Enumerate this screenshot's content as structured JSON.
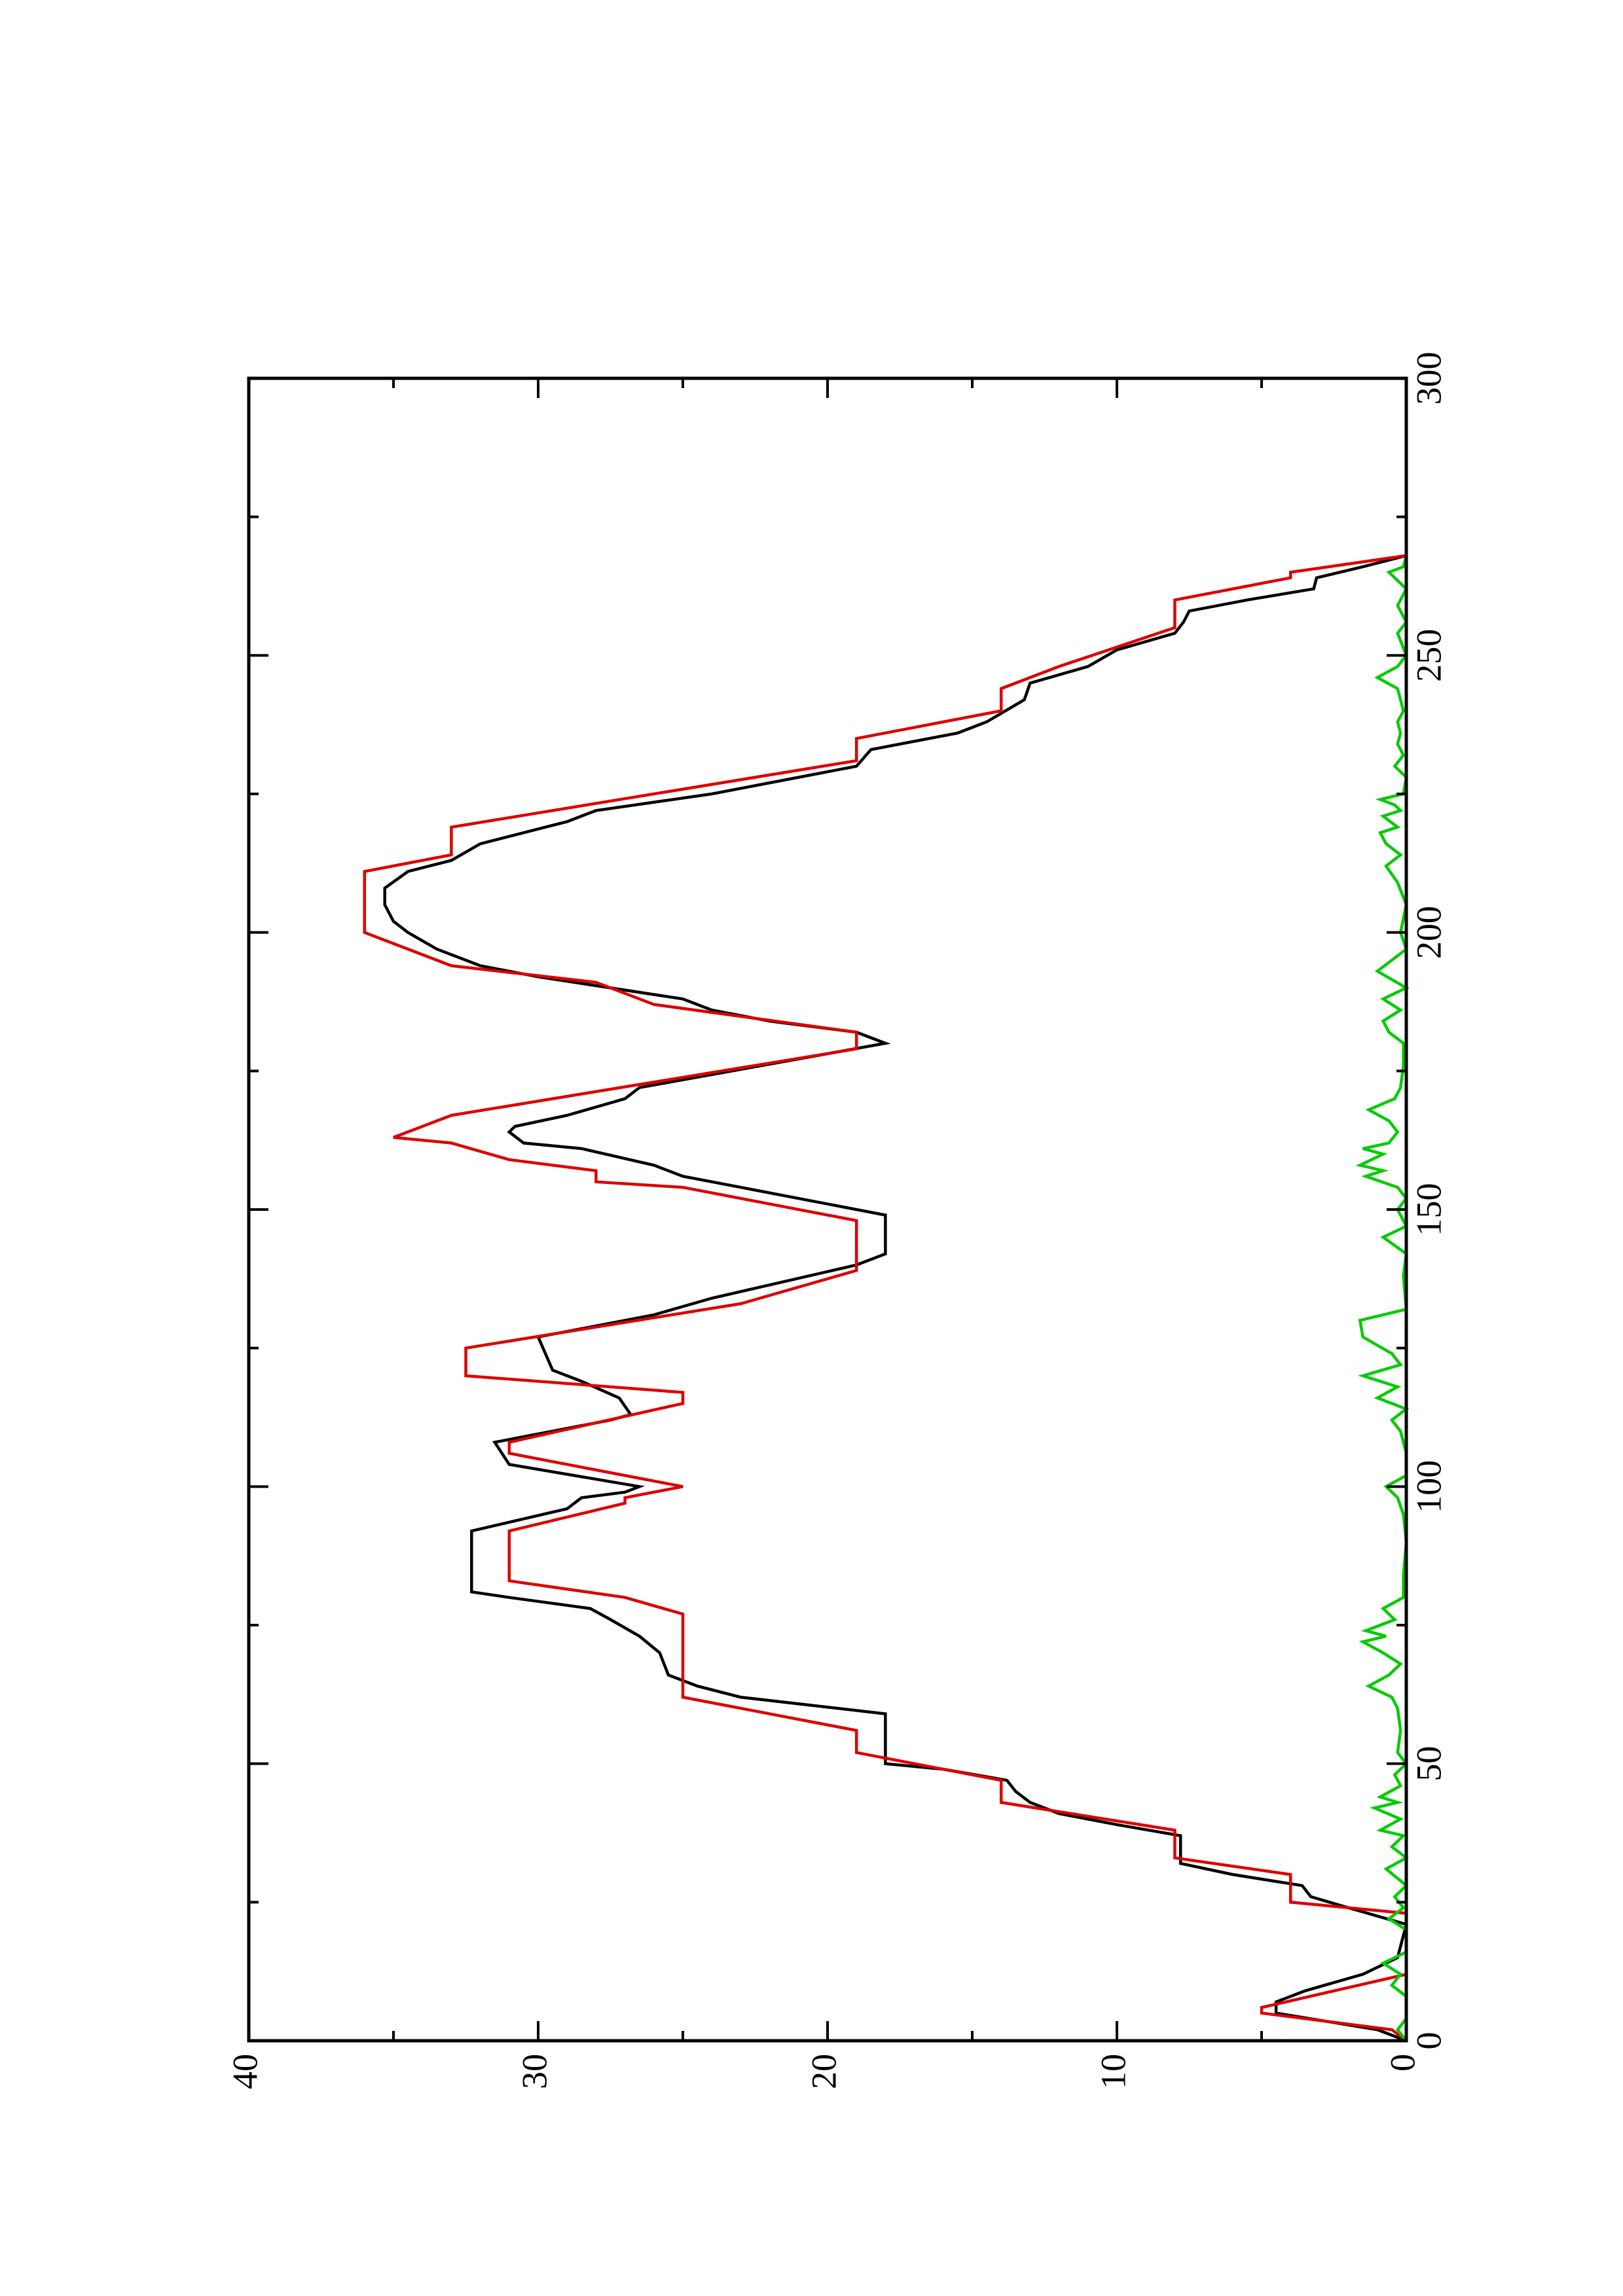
{
  "chart_data": {
    "type": "line",
    "title": "",
    "xlabel": "",
    "ylabel": "",
    "xlim": [
      0,
      300
    ],
    "ylim": [
      0,
      40
    ],
    "x_ticks": [
      0,
      50,
      100,
      150,
      200,
      250,
      300
    ],
    "y_ticks": [
      0,
      10,
      20,
      30,
      40
    ],
    "x_minor_step": 25,
    "y_minor_step": 5,
    "grid": false,
    "legend": "none",
    "orientation": "rotated-90-ccw",
    "colors": {
      "axes": "#000000",
      "series_black": "#000000",
      "series_red": "#dd0000",
      "series_green": "#00cc00"
    },
    "series": [
      {
        "color": "#000000",
        "points": [
          [
            0,
            0
          ],
          [
            2,
            1
          ],
          [
            5,
            4.5
          ],
          [
            7,
            4.5
          ],
          [
            9,
            3.5
          ],
          [
            12,
            1.5
          ],
          [
            15,
            0.3
          ],
          [
            21,
            0
          ],
          [
            24,
            2
          ],
          [
            26,
            3.3
          ],
          [
            28,
            3.6
          ],
          [
            30,
            6
          ],
          [
            32,
            7.8
          ],
          [
            37,
            7.8
          ],
          [
            39,
            10
          ],
          [
            41,
            12
          ],
          [
            43,
            13
          ],
          [
            45,
            13.5
          ],
          [
            47,
            13.8
          ],
          [
            49,
            16
          ],
          [
            50,
            18
          ],
          [
            59,
            18
          ],
          [
            62,
            23
          ],
          [
            64,
            24.5
          ],
          [
            66,
            25.5
          ],
          [
            70,
            25.8
          ],
          [
            73,
            26.5
          ],
          [
            76,
            27.5
          ],
          [
            78,
            28.2
          ],
          [
            80,
            31
          ],
          [
            81,
            32.3
          ],
          [
            92,
            32.3
          ],
          [
            96,
            29
          ],
          [
            98,
            28.5
          ],
          [
            99,
            27
          ],
          [
            100,
            26.5
          ],
          [
            104,
            31
          ],
          [
            108,
            31.5
          ],
          [
            109,
            30.5
          ],
          [
            112,
            27.5
          ],
          [
            113,
            26.8
          ],
          [
            116,
            27.2
          ],
          [
            119,
            28.5
          ],
          [
            121,
            29.5
          ],
          [
            127,
            30
          ],
          [
            131,
            26
          ],
          [
            134,
            24
          ],
          [
            140,
            19
          ],
          [
            142,
            18
          ],
          [
            149,
            18
          ],
          [
            154,
            23
          ],
          [
            156,
            25
          ],
          [
            158,
            26
          ],
          [
            161,
            28.5
          ],
          [
            162,
            30.5
          ],
          [
            164,
            31
          ],
          [
            165,
            30.8
          ],
          [
            167,
            29
          ],
          [
            170,
            27
          ],
          [
            172,
            26.5
          ],
          [
            180,
            18
          ],
          [
            182,
            19
          ],
          [
            184,
            22
          ],
          [
            186,
            24
          ],
          [
            188,
            25
          ],
          [
            192,
            30
          ],
          [
            194,
            32
          ],
          [
            197,
            33.5
          ],
          [
            200,
            34.5
          ],
          [
            202,
            35
          ],
          [
            205,
            35.3
          ],
          [
            208,
            35.3
          ],
          [
            211,
            34.5
          ],
          [
            213,
            33
          ],
          [
            216,
            32
          ],
          [
            220,
            29
          ],
          [
            222,
            28
          ],
          [
            225,
            24
          ],
          [
            230,
            19
          ],
          [
            233,
            18.5
          ],
          [
            236,
            15.5
          ],
          [
            238,
            14.5
          ],
          [
            242,
            13.2
          ],
          [
            245,
            13
          ],
          [
            248,
            11
          ],
          [
            251,
            10
          ],
          [
            254,
            8
          ],
          [
            256,
            7.7
          ],
          [
            258,
            7.5
          ],
          [
            260,
            5.5
          ],
          [
            262,
            3.2
          ],
          [
            264,
            3.1
          ],
          [
            266,
            1.5
          ],
          [
            268,
            0
          ]
        ]
      },
      {
        "color": "#dd0000",
        "points": [
          [
            0,
            0
          ],
          [
            2,
            0.5
          ],
          [
            5,
            5
          ],
          [
            6,
            5
          ],
          [
            12,
            0
          ],
          [
            15,
            0
          ],
          [
            23,
            0
          ],
          [
            25,
            4
          ],
          [
            30,
            4
          ],
          [
            33,
            8
          ],
          [
            38,
            8
          ],
          [
            43,
            14
          ],
          [
            47,
            14
          ],
          [
            52,
            19
          ],
          [
            56,
            19
          ],
          [
            62,
            25
          ],
          [
            74,
            25
          ],
          [
            77,
            25
          ],
          [
            80,
            27
          ],
          [
            83,
            31
          ],
          [
            92,
            31
          ],
          [
            97,
            27
          ],
          [
            98,
            27
          ],
          [
            100,
            25
          ],
          [
            106,
            31
          ],
          [
            108,
            31
          ],
          [
            115,
            25
          ],
          [
            117,
            25
          ],
          [
            120,
            32.5
          ],
          [
            125,
            32.5
          ],
          [
            133,
            23
          ],
          [
            139,
            19
          ],
          [
            148,
            19
          ],
          [
            154,
            25
          ],
          [
            155,
            28
          ],
          [
            157,
            28
          ],
          [
            159,
            31
          ],
          [
            162,
            33
          ],
          [
            163,
            35
          ],
          [
            167,
            33
          ],
          [
            179,
            19
          ],
          [
            180,
            19
          ],
          [
            182,
            19
          ],
          [
            187,
            26
          ],
          [
            191,
            28
          ],
          [
            194,
            33
          ],
          [
            200,
            36
          ],
          [
            211,
            36
          ],
          [
            214,
            33
          ],
          [
            219,
            33
          ],
          [
            231,
            19
          ],
          [
            235,
            19
          ],
          [
            240,
            14
          ],
          [
            244,
            14
          ],
          [
            248,
            12
          ],
          [
            255,
            8
          ],
          [
            260,
            8
          ],
          [
            264,
            4
          ],
          [
            265,
            4
          ],
          [
            268,
            0
          ]
        ]
      },
      {
        "color": "#00cc00",
        "points": [
          [
            0,
            0
          ],
          [
            2,
            0.3
          ],
          [
            4,
            0
          ],
          [
            8,
            0
          ],
          [
            10,
            0.5
          ],
          [
            12,
            0.2
          ],
          [
            14,
            0.8
          ],
          [
            16,
            0
          ],
          [
            20,
            0
          ],
          [
            22,
            0.6
          ],
          [
            24,
            0.1
          ],
          [
            26,
            0.4
          ],
          [
            28,
            0
          ],
          [
            31,
            0.7
          ],
          [
            33,
            0
          ],
          [
            35,
            0.5
          ],
          [
            37,
            0.1
          ],
          [
            38,
            0.9
          ],
          [
            40,
            0.2
          ],
          [
            42,
            1.1
          ],
          [
            43,
            0.3
          ],
          [
            44,
            0.9
          ],
          [
            46,
            0.2
          ],
          [
            48,
            0.4
          ],
          [
            50,
            0
          ],
          [
            52,
            0.3
          ],
          [
            56,
            0.2
          ],
          [
            60,
            0.3
          ],
          [
            62,
            0.5
          ],
          [
            64,
            1.3
          ],
          [
            66,
            0.6
          ],
          [
            68,
            0.2
          ],
          [
            70,
            0.8
          ],
          [
            72,
            1.5
          ],
          [
            73,
            0.7
          ],
          [
            74,
            1.4
          ],
          [
            76,
            0.4
          ],
          [
            78,
            0.8
          ],
          [
            80,
            0.1
          ],
          [
            84,
            0.1
          ],
          [
            90,
            0
          ],
          [
            95,
            0.1
          ],
          [
            98,
            0.3
          ],
          [
            100,
            0.7
          ],
          [
            102,
            0
          ],
          [
            106,
            0
          ],
          [
            110,
            0.2
          ],
          [
            112,
            0.5
          ],
          [
            114,
            0
          ],
          [
            116,
            1
          ],
          [
            118,
            0.3
          ],
          [
            120,
            1.5
          ],
          [
            122,
            0.2
          ],
          [
            124,
            0.5
          ],
          [
            127,
            1.5
          ],
          [
            130,
            1.6
          ],
          [
            132,
            0
          ],
          [
            138,
            0.1
          ],
          [
            142,
            0
          ],
          [
            145,
            0.8
          ],
          [
            147,
            0
          ],
          [
            150,
            0.3
          ],
          [
            152,
            0
          ],
          [
            154,
            0.3
          ],
          [
            156,
            1.4
          ],
          [
            157,
            0.8
          ],
          [
            158,
            1.6
          ],
          [
            160,
            0.8
          ],
          [
            161,
            1.5
          ],
          [
            162,
            0.6
          ],
          [
            164,
            0.3
          ],
          [
            166,
            0.6
          ],
          [
            168,
            1.3
          ],
          [
            170,
            0.4
          ],
          [
            172,
            0.2
          ],
          [
            176,
            0.1
          ],
          [
            180,
            0.1
          ],
          [
            182,
            0.6
          ],
          [
            184,
            0.8
          ],
          [
            186,
            0.2
          ],
          [
            188,
            0.8
          ],
          [
            190,
            0
          ],
          [
            193,
            1
          ],
          [
            195,
            0.5
          ],
          [
            197,
            0
          ],
          [
            200,
            0.2
          ],
          [
            205,
            0
          ],
          [
            209,
            0.3
          ],
          [
            212,
            0.7
          ],
          [
            214,
            0.2
          ],
          [
            216,
            0.7
          ],
          [
            218,
            0.9
          ],
          [
            219,
            0.3
          ],
          [
            221,
            0.8
          ],
          [
            222,
            0.2
          ],
          [
            223,
            0.4
          ],
          [
            224,
            0.9
          ],
          [
            225,
            0.1
          ],
          [
            228,
            0
          ],
          [
            230,
            0.4
          ],
          [
            232,
            0.1
          ],
          [
            234,
            0.3
          ],
          [
            236,
            0.2
          ],
          [
            238,
            0.3
          ],
          [
            240,
            0.1
          ],
          [
            244,
            0.3
          ],
          [
            246,
            1
          ],
          [
            248,
            0.3
          ],
          [
            250,
            0
          ],
          [
            254,
            0.3
          ],
          [
            256,
            0
          ],
          [
            259,
            0.3
          ],
          [
            262,
            0
          ],
          [
            265,
            0.6
          ],
          [
            266,
            0.1
          ],
          [
            268,
            0
          ]
        ]
      }
    ]
  }
}
